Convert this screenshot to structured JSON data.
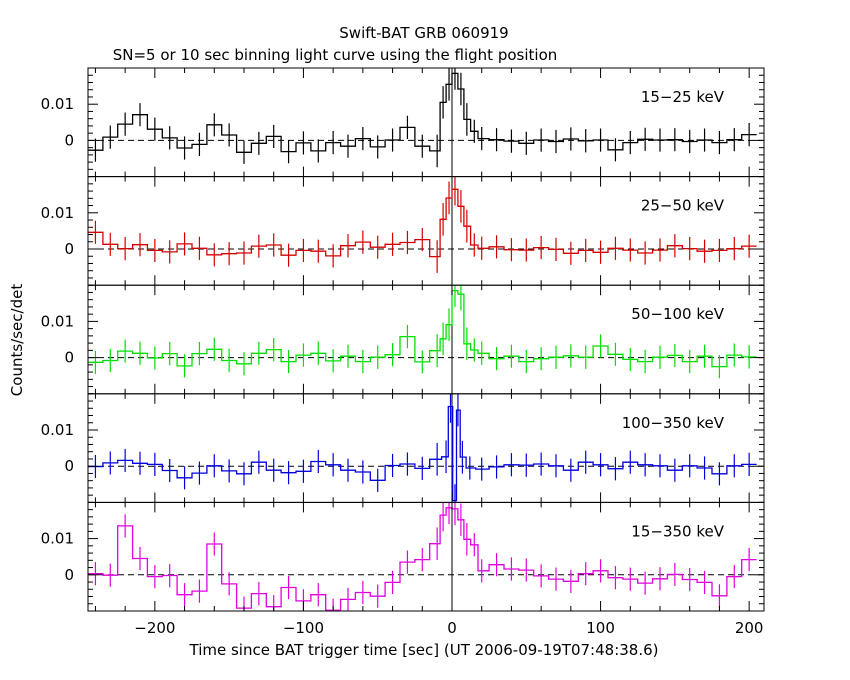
{
  "chart_data": {
    "type": "line",
    "title": "Swift-BAT GRB 060919",
    "subtitle": "SN=5 or 10 sec binning light curve using the flight position",
    "xlabel": "Time since BAT trigger time [sec] (UT 2006-09-19T07:48:38.6)",
    "ylabel": "Counts/sec/det",
    "xlim": [
      -245,
      210
    ],
    "ylim": [
      -0.01,
      0.02
    ],
    "x_ticks": [
      -200,
      -100,
      0,
      100,
      200
    ],
    "x_tick_labels": [
      "−200",
      "−100",
      "0",
      "100",
      "200"
    ],
    "y_ticks": [
      0,
      0.01
    ],
    "y_tick_labels": [
      "0",
      "0.01"
    ],
    "panels": [
      {
        "name": "15-25",
        "label": "15−25 keV",
        "color": "#000000",
        "bins": [
          [
            -240,
            -0.0027
          ],
          [
            -230,
            0.0009
          ],
          [
            -220,
            0.0045
          ],
          [
            -210,
            0.0071
          ],
          [
            -200,
            0.0031
          ],
          [
            -190,
            0.0007
          ],
          [
            -180,
            -0.0021
          ],
          [
            -170,
            -0.0011
          ],
          [
            -160,
            0.0043
          ],
          [
            -150,
            0.0015
          ],
          [
            -140,
            -0.0033
          ],
          [
            -130,
            -0.0008
          ],
          [
            -120,
            0.0011
          ],
          [
            -110,
            -0.0031
          ],
          [
            -100,
            -0.0007
          ],
          [
            -90,
            -0.0029
          ],
          [
            -80,
            -0.0006
          ],
          [
            -70,
            -0.0016
          ],
          [
            -60,
            0.0005
          ],
          [
            -50,
            -0.0018
          ],
          [
            -40,
            0.0001
          ],
          [
            -30,
            0.0036
          ],
          [
            -20,
            -0.0016
          ],
          [
            -10,
            -0.0029
          ],
          [
            -6,
            0.0105
          ],
          [
            -2,
            0.0155
          ],
          [
            2,
            0.0185
          ],
          [
            6,
            0.0142
          ],
          [
            10,
            0.0058
          ],
          [
            15,
            0.0025
          ],
          [
            20,
            0.0005
          ],
          [
            30,
            0.0002
          ],
          [
            40,
            -0.0002
          ],
          [
            50,
            -0.0008
          ],
          [
            60,
            0.0001
          ],
          [
            70,
            -0.0003
          ],
          [
            80,
            0.0004
          ],
          [
            90,
            -0.0001
          ],
          [
            100,
            0.0001
          ],
          [
            110,
            -0.0026
          ],
          [
            120,
            -0.0006
          ],
          [
            130,
            0.0003
          ],
          [
            140,
            0.0001
          ],
          [
            150,
            0.0002
          ],
          [
            160,
            -0.0003
          ],
          [
            170,
            0.0001
          ],
          [
            180,
            -0.0006
          ],
          [
            190,
            0.0002
          ],
          [
            200,
            0.0016
          ]
        ]
      },
      {
        "name": "25-50",
        "label": "25−50 keV",
        "color": "#d40000",
        "bins": [
          [
            -240,
            0.0046
          ],
          [
            -230,
            0.0013
          ],
          [
            -220,
            0.0001
          ],
          [
            -210,
            0.0012
          ],
          [
            -200,
            -0.0004
          ],
          [
            -190,
            -0.0008
          ],
          [
            -180,
            0.0014
          ],
          [
            -170,
            0.0002
          ],
          [
            -160,
            -0.0016
          ],
          [
            -150,
            -0.0013
          ],
          [
            -140,
            -0.0011
          ],
          [
            -130,
            0.0008
          ],
          [
            -120,
            0.0011
          ],
          [
            -110,
            -0.0017
          ],
          [
            -100,
            -0.0004
          ],
          [
            -90,
            -0.0006
          ],
          [
            -80,
            -0.0019
          ],
          [
            -70,
            0.0009
          ],
          [
            -60,
            0.0019
          ],
          [
            -50,
            0.0005
          ],
          [
            -40,
            0.0013
          ],
          [
            -30,
            0.0018
          ],
          [
            -20,
            0.0026
          ],
          [
            -10,
            -0.0021
          ],
          [
            -6,
            0.0082
          ],
          [
            -2,
            0.0141
          ],
          [
            2,
            0.0165
          ],
          [
            6,
            0.0118
          ],
          [
            10,
            0.0063
          ],
          [
            15,
            0.0011
          ],
          [
            20,
            0.0002
          ],
          [
            30,
            0.0006
          ],
          [
            40,
            -0.0002
          ],
          [
            50,
            -0.0003
          ],
          [
            60,
            0.0004
          ],
          [
            70,
            -0.0001
          ],
          [
            80,
            -0.0012
          ],
          [
            90,
            -0.0004
          ],
          [
            100,
            -0.0009
          ],
          [
            110,
            0.0002
          ],
          [
            120,
            -0.0003
          ],
          [
            130,
            -0.0011
          ],
          [
            140,
            -0.0003
          ],
          [
            150,
            0.0009
          ],
          [
            160,
            0.0001
          ],
          [
            170,
            -0.0006
          ],
          [
            180,
            -0.0004
          ],
          [
            190,
            0.0001
          ],
          [
            200,
            0.0008
          ]
        ]
      },
      {
        "name": "50-100",
        "label": "50−100 keV",
        "color": "#00e000",
        "bins": [
          [
            -240,
            -0.0013
          ],
          [
            -230,
            -0.0008
          ],
          [
            -220,
            0.0018
          ],
          [
            -210,
            0.0012
          ],
          [
            -200,
            -0.0001
          ],
          [
            -190,
            0.0011
          ],
          [
            -180,
            -0.0023
          ],
          [
            -170,
            0.0011
          ],
          [
            -160,
            0.0023
          ],
          [
            -150,
            -0.0008
          ],
          [
            -140,
            -0.0017
          ],
          [
            -130,
            0.0012
          ],
          [
            -120,
            0.0022
          ],
          [
            -110,
            -0.0011
          ],
          [
            -100,
            0.0007
          ],
          [
            -90,
            0.0012
          ],
          [
            -80,
            -0.0009
          ],
          [
            -70,
            0.0004
          ],
          [
            -60,
            -0.0011
          ],
          [
            -50,
            0.0001
          ],
          [
            -40,
            0.0008
          ],
          [
            -30,
            0.0058
          ],
          [
            -20,
            -0.0012
          ],
          [
            -10,
            0.0019
          ],
          [
            -6,
            0.0052
          ],
          [
            -2,
            0.0091
          ],
          [
            2,
            0.0185
          ],
          [
            6,
            0.0175
          ],
          [
            10,
            0.0038
          ],
          [
            15,
            0.0021
          ],
          [
            20,
            0.0012
          ],
          [
            30,
            -0.0003
          ],
          [
            40,
            0.0004
          ],
          [
            50,
            -0.0011
          ],
          [
            60,
            -0.0003
          ],
          [
            70,
            0.0001
          ],
          [
            80,
            0.0005
          ],
          [
            90,
            0.0001
          ],
          [
            100,
            0.0032
          ],
          [
            110,
            0.0009
          ],
          [
            120,
            -0.0005
          ],
          [
            130,
            -0.0011
          ],
          [
            140,
            0.0001
          ],
          [
            150,
            0.0006
          ],
          [
            160,
            -0.0011
          ],
          [
            170,
            0.0004
          ],
          [
            180,
            -0.0025
          ],
          [
            190,
            0.0007
          ],
          [
            200,
            0.0002
          ]
        ]
      },
      {
        "name": "100-350",
        "label": "100−350 keV",
        "color": "#0000e0",
        "bins": [
          [
            -240,
            -0.0001
          ],
          [
            -230,
            0.0009
          ],
          [
            -220,
            0.0016
          ],
          [
            -210,
            0.0008
          ],
          [
            -200,
            0.0005
          ],
          [
            -190,
            -0.0012
          ],
          [
            -180,
            -0.0032
          ],
          [
            -170,
            -0.0019
          ],
          [
            -160,
            0.0001
          ],
          [
            -150,
            -0.0013
          ],
          [
            -140,
            -0.0021
          ],
          [
            -130,
            0.0011
          ],
          [
            -120,
            -0.0011
          ],
          [
            -110,
            -0.0018
          ],
          [
            -100,
            -0.0014
          ],
          [
            -90,
            0.0013
          ],
          [
            -80,
            0.0004
          ],
          [
            -70,
            -0.0011
          ],
          [
            -60,
            -0.0016
          ],
          [
            -50,
            -0.0039
          ],
          [
            -40,
            0.0002
          ],
          [
            -30,
            0.0006
          ],
          [
            -20,
            -0.0006
          ],
          [
            -10,
            0.0019
          ],
          [
            -4,
            0.0026
          ],
          [
            -1,
            0.0165
          ],
          [
            2,
            -0.0095
          ],
          [
            4,
            0.0155
          ],
          [
            7,
            0.0025
          ],
          [
            12,
            -0.0005
          ],
          [
            20,
            -0.0008
          ],
          [
            30,
            -0.0002
          ],
          [
            40,
            0.0004
          ],
          [
            50,
            0.0003
          ],
          [
            60,
            0.0006
          ],
          [
            70,
            0.0001
          ],
          [
            80,
            -0.0011
          ],
          [
            90,
            0.0011
          ],
          [
            100,
            0.0004
          ],
          [
            110,
            -0.0007
          ],
          [
            120,
            0.0011
          ],
          [
            130,
            0.0004
          ],
          [
            140,
            0.0001
          ],
          [
            150,
            -0.0011
          ],
          [
            160,
            0.0001
          ],
          [
            170,
            -0.0005
          ],
          [
            180,
            -0.0021
          ],
          [
            190,
            0.0001
          ],
          [
            200,
            0.0005
          ]
        ]
      },
      {
        "name": "15-350",
        "label": "15−350 keV",
        "color": "#e000e0",
        "bins": [
          [
            -240,
            0.0003
          ],
          [
            -230,
            -0.0001
          ],
          [
            -220,
            0.0135
          ],
          [
            -210,
            0.0045
          ],
          [
            -200,
            -0.0005
          ],
          [
            -190,
            -0.0002
          ],
          [
            -180,
            -0.0055
          ],
          [
            -170,
            -0.0045
          ],
          [
            -160,
            0.0085
          ],
          [
            -150,
            -0.0025
          ],
          [
            -140,
            -0.0092
          ],
          [
            -130,
            -0.0052
          ],
          [
            -120,
            -0.0088
          ],
          [
            -110,
            -0.0035
          ],
          [
            -100,
            -0.0072
          ],
          [
            -90,
            -0.0055
          ],
          [
            -80,
            -0.0098
          ],
          [
            -70,
            -0.0068
          ],
          [
            -60,
            -0.0049
          ],
          [
            -50,
            -0.0059
          ],
          [
            -40,
            -0.0021
          ],
          [
            -30,
            0.0035
          ],
          [
            -20,
            0.0042
          ],
          [
            -10,
            0.0086
          ],
          [
            -6,
            0.0165
          ],
          [
            -2,
            0.0185
          ],
          [
            2,
            0.0182
          ],
          [
            6,
            0.0152
          ],
          [
            10,
            0.0098
          ],
          [
            15,
            0.0083
          ],
          [
            20,
            0.0011
          ],
          [
            30,
            0.0028
          ],
          [
            40,
            0.0016
          ],
          [
            50,
            0.0013
          ],
          [
            60,
            -0.0003
          ],
          [
            70,
            -0.0012
          ],
          [
            80,
            -0.0018
          ],
          [
            90,
            0.0003
          ],
          [
            100,
            0.0011
          ],
          [
            110,
            -0.0008
          ],
          [
            120,
            -0.0012
          ],
          [
            130,
            -0.0023
          ],
          [
            140,
            -0.0011
          ],
          [
            150,
            0.0001
          ],
          [
            160,
            -0.0013
          ],
          [
            170,
            -0.0021
          ],
          [
            180,
            -0.0058
          ],
          [
            190,
            -0.0005
          ],
          [
            200,
            0.0042
          ]
        ]
      }
    ]
  }
}
